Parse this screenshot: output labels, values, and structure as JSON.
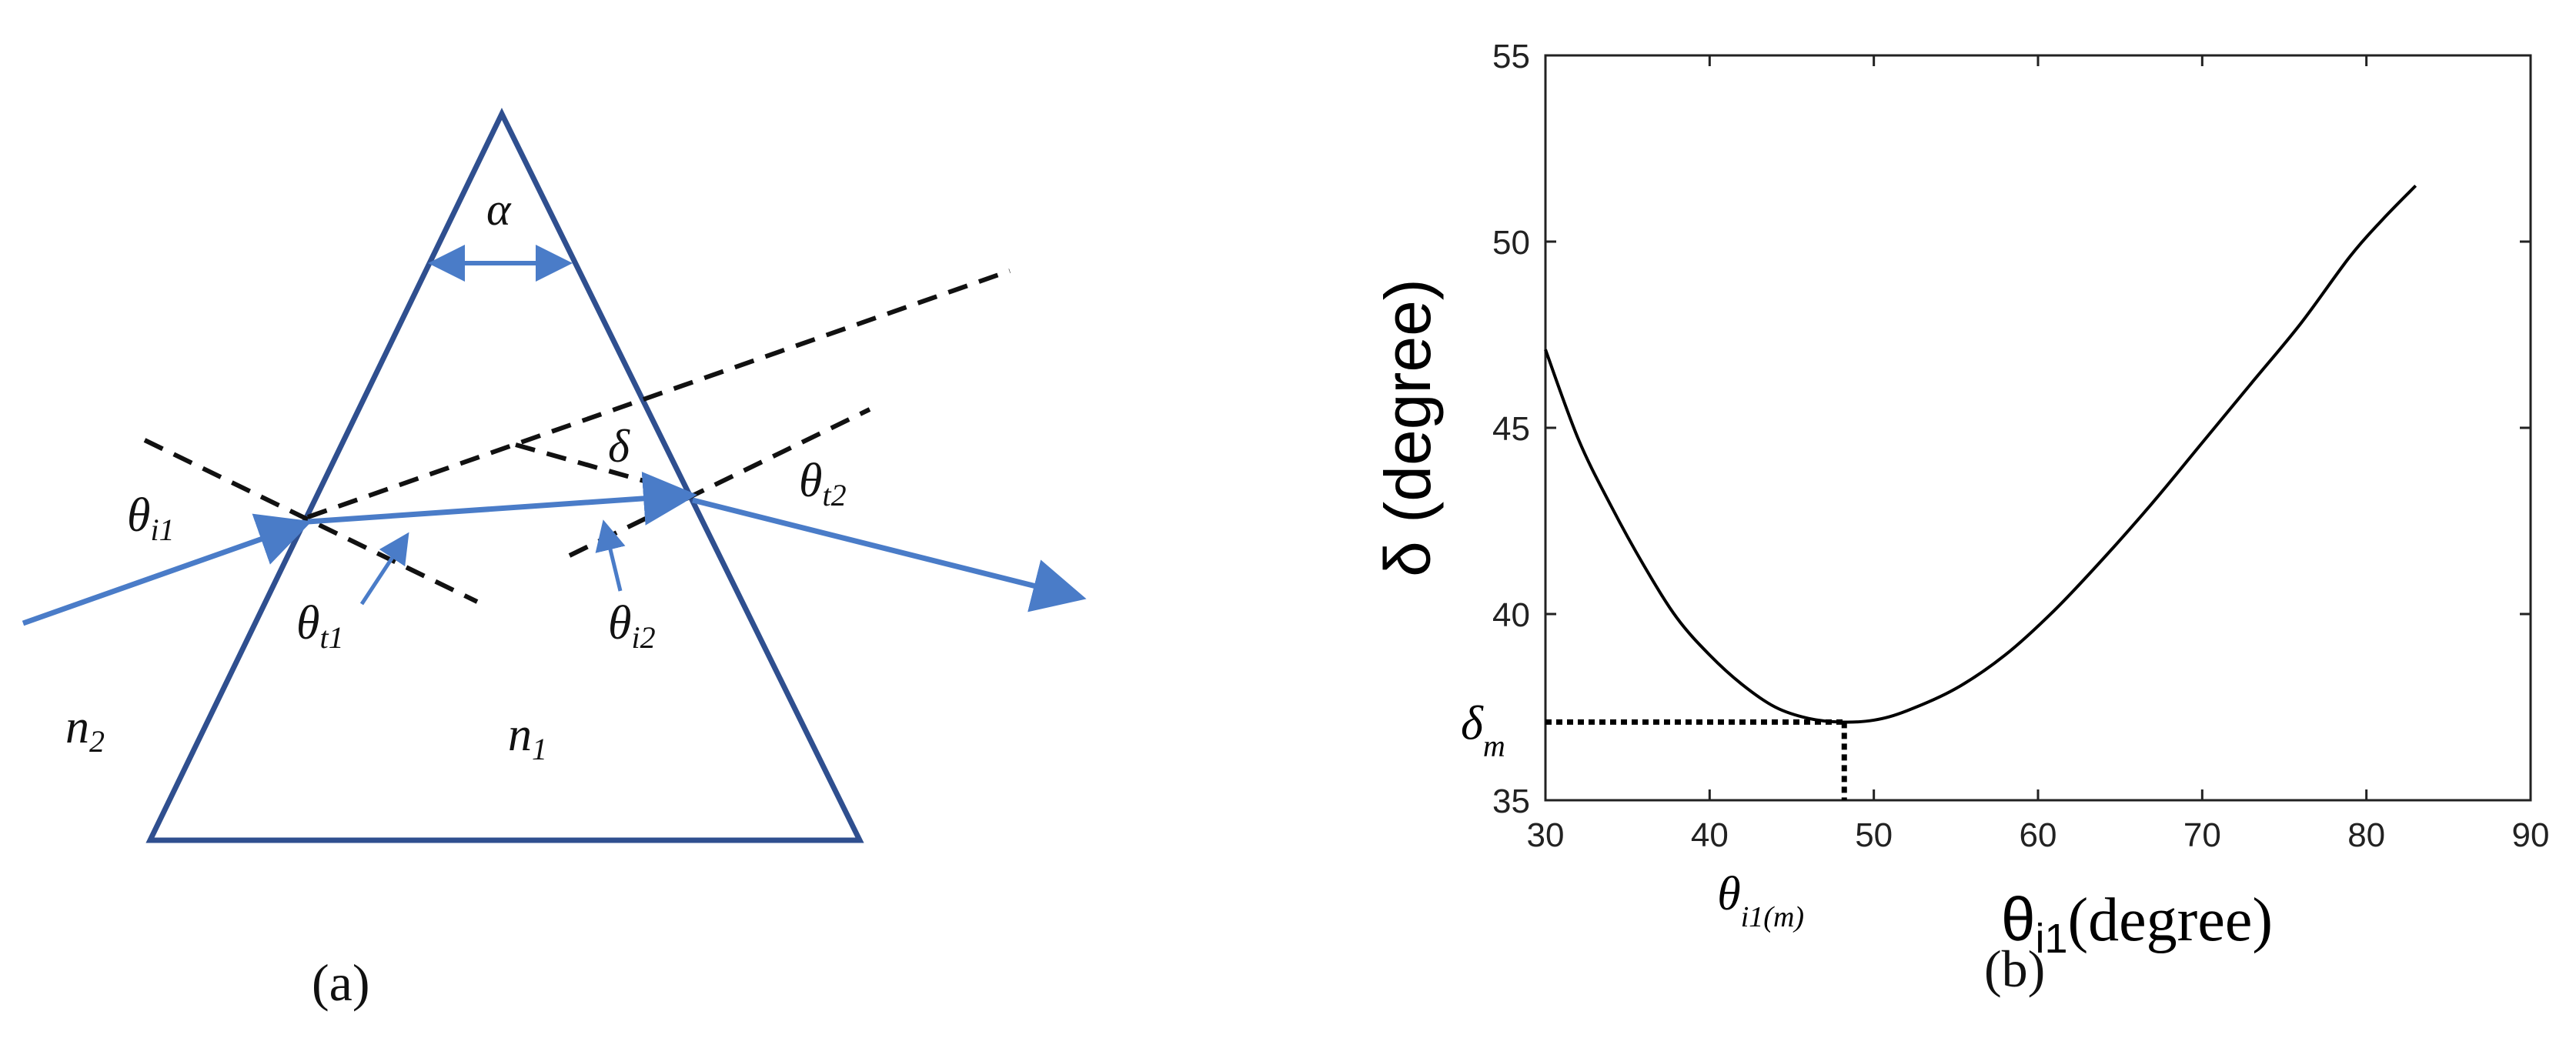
{
  "figure": {
    "panel_a": {
      "caption": "(a)",
      "labels": {
        "apex_angle": {
          "base": "α",
          "sub": ""
        },
        "deviation": {
          "base": "δ",
          "sub": ""
        },
        "incident_angle": {
          "base": "θ",
          "sub": "i1"
        },
        "refracted_angle_1": {
          "base": "θ",
          "sub": "t1"
        },
        "incident_angle_2": {
          "base": "θ",
          "sub": "i2"
        },
        "refracted_angle_2": {
          "base": "θ",
          "sub": "t2"
        },
        "medium_outside": {
          "base": "n",
          "sub": "2"
        },
        "medium_inside": {
          "base": "n",
          "sub": "1"
        }
      },
      "colors": {
        "prism": "#2f4f8f",
        "ray": "#4a7cc8",
        "dashed": "#111111"
      }
    },
    "panel_b": {
      "caption": "(b)",
      "y_axis_label": "δ (degree)",
      "x_axis_label": {
        "base": "θ",
        "sub": "i1",
        "rest": "(degree)"
      },
      "min_y_label": {
        "base": "δ",
        "sub": "m"
      },
      "min_x_label": {
        "base": "θ",
        "sub": "i1(m)"
      }
    }
  },
  "chart_data": {
    "type": "line",
    "title": "",
    "xlabel": "θi1(degree)",
    "ylabel": "δ (degree)",
    "xlim": [
      30,
      90
    ],
    "ylim": [
      35,
      55
    ],
    "xticks": [
      30,
      40,
      50,
      60,
      70,
      80,
      90
    ],
    "yticks": [
      35,
      40,
      45,
      50,
      55
    ],
    "grid": false,
    "legend": "none",
    "series": [
      {
        "color": "#000000",
        "x": [
          30,
          32,
          34,
          36,
          38,
          40,
          42,
          44,
          46,
          48,
          50,
          52,
          55,
          58,
          61,
          64,
          67,
          70,
          73,
          76,
          79,
          81,
          83
        ],
        "y": [
          47.1,
          44.7,
          42.9,
          41.3,
          39.9,
          38.9,
          38.1,
          37.5,
          37.2,
          37.1,
          37.15,
          37.4,
          38.0,
          38.9,
          40.1,
          41.5,
          43.0,
          44.6,
          46.2,
          47.8,
          49.6,
          50.6,
          51.5
        ]
      }
    ],
    "minimum": {
      "x": 48.2,
      "y": 37.1
    }
  }
}
